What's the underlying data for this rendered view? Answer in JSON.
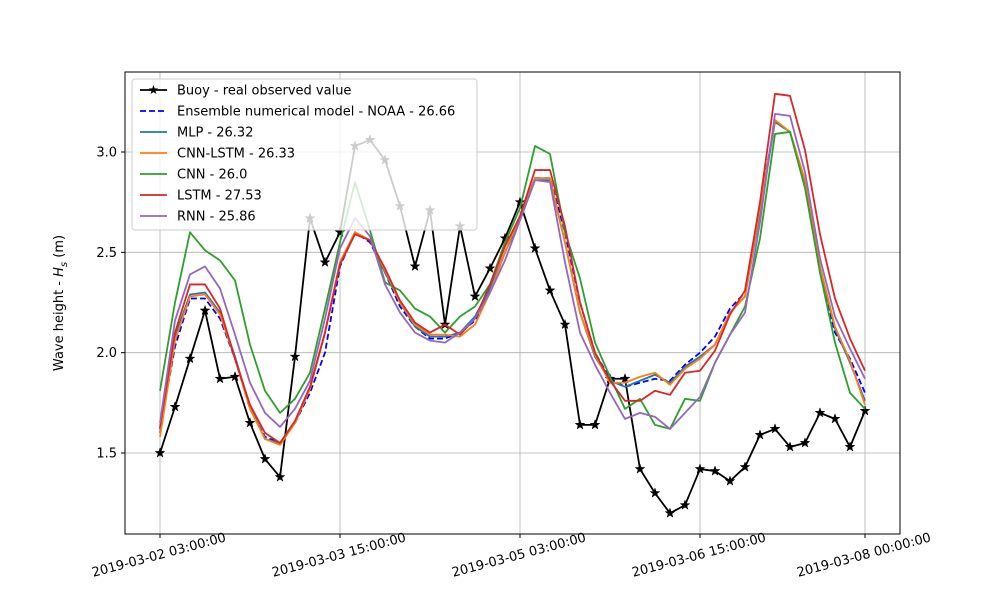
{
  "chart_data": {
    "type": "line",
    "title": "",
    "xlabel": "",
    "ylabel": "Wave height - ",
    "ylabel_symbol": "H",
    "ylabel_subscript": "s",
    "ylabel_unit": " (m)",
    "x_start": "2019-03-02 03:00:00",
    "x_end": "2019-03-08 00:00:00",
    "x": [
      "2019-03-02 03:00:00",
      "2019-03-02 06:00:00",
      "2019-03-02 09:00:00",
      "2019-03-02 12:00:00",
      "2019-03-02 15:00:00",
      "2019-03-02 18:00:00",
      "2019-03-02 21:00:00",
      "2019-03-03 00:00:00",
      "2019-03-03 03:00:00",
      "2019-03-03 06:00:00",
      "2019-03-03 09:00:00",
      "2019-03-03 12:00:00",
      "2019-03-03 15:00:00",
      "2019-03-03 18:00:00",
      "2019-03-03 21:00:00",
      "2019-03-04 00:00:00",
      "2019-03-04 03:00:00",
      "2019-03-04 06:00:00",
      "2019-03-04 09:00:00",
      "2019-03-04 12:00:00",
      "2019-03-04 15:00:00",
      "2019-03-04 18:00:00",
      "2019-03-04 21:00:00",
      "2019-03-05 00:00:00",
      "2019-03-05 03:00:00",
      "2019-03-05 06:00:00",
      "2019-03-05 09:00:00",
      "2019-03-05 12:00:00",
      "2019-03-05 15:00:00",
      "2019-03-05 18:00:00",
      "2019-03-05 21:00:00",
      "2019-03-06 00:00:00",
      "2019-03-06 03:00:00",
      "2019-03-06 06:00:00",
      "2019-03-06 09:00:00",
      "2019-03-06 12:00:00",
      "2019-03-06 15:00:00",
      "2019-03-06 18:00:00",
      "2019-03-06 21:00:00",
      "2019-03-07 00:00:00",
      "2019-03-07 03:00:00",
      "2019-03-07 06:00:00",
      "2019-03-07 09:00:00",
      "2019-03-07 12:00:00",
      "2019-03-07 15:00:00",
      "2019-03-07 18:00:00",
      "2019-03-07 21:00:00",
      "2019-03-08 00:00:00"
    ],
    "x_ticks": [
      "2019-03-02 03:00:00",
      "2019-03-03 15:00:00",
      "2019-03-05 03:00:00",
      "2019-03-06 15:00:00",
      "2019-03-08 00:00:00"
    ],
    "y_ticks": [
      1.5,
      2.0,
      2.5,
      3.0
    ],
    "y_tick_labels": [
      "1.5",
      "2.0",
      "2.5",
      "3.0"
    ],
    "ylim": [
      1.1,
      3.4
    ],
    "grid": true,
    "legend_position": "upper-left",
    "series": [
      {
        "name": "Buoy - real observed value",
        "color": "#000000",
        "style": "solid",
        "marker": "star",
        "values": [
          1.5,
          1.73,
          1.97,
          2.21,
          1.87,
          1.88,
          1.65,
          1.47,
          1.38,
          1.98,
          2.67,
          2.45,
          2.6,
          3.03,
          3.06,
          2.96,
          2.73,
          2.43,
          2.71,
          2.14,
          2.63,
          2.28,
          2.42,
          2.57,
          2.75,
          2.52,
          2.31,
          2.14,
          1.64,
          1.64,
          1.87,
          1.87,
          1.42,
          1.3,
          1.2,
          1.24,
          1.42,
          1.41,
          1.36,
          1.43,
          1.59,
          1.62,
          1.53,
          1.55,
          1.7,
          1.67,
          1.53,
          1.71
        ]
      },
      {
        "name": "Ensemble numerical model - NOAA - 26.66",
        "color": "#0000ff",
        "style": "dashed",
        "values": [
          1.62,
          2.03,
          2.27,
          2.27,
          2.17,
          1.97,
          1.72,
          1.58,
          1.55,
          1.65,
          1.8,
          2.0,
          2.43,
          2.6,
          2.55,
          2.4,
          2.23,
          2.13,
          2.07,
          2.07,
          2.1,
          2.16,
          2.3,
          2.5,
          2.68,
          2.87,
          2.87,
          2.6,
          2.25,
          2.0,
          1.87,
          1.83,
          1.85,
          1.87,
          1.86,
          1.94,
          2.0,
          2.08,
          2.22,
          2.3,
          2.74,
          3.15,
          3.1,
          2.85,
          2.4,
          2.1,
          1.97,
          1.8
        ]
      },
      {
        "name": "MLP - 26.32",
        "color": "#1f77b4",
        "style": "solid",
        "values": [
          1.6,
          2.08,
          2.29,
          2.3,
          2.2,
          1.98,
          1.73,
          1.57,
          1.55,
          1.65,
          1.82,
          2.1,
          2.45,
          2.6,
          2.56,
          2.4,
          2.25,
          2.13,
          2.08,
          2.08,
          2.1,
          2.18,
          2.32,
          2.5,
          2.66,
          2.86,
          2.86,
          2.55,
          2.2,
          1.98,
          1.86,
          1.83,
          1.86,
          1.89,
          1.85,
          1.93,
          1.98,
          2.04,
          2.2,
          2.28,
          2.7,
          3.15,
          3.1,
          2.85,
          2.42,
          2.12,
          1.95,
          1.76
        ]
      },
      {
        "name": "CNN-LSTM - 26.33",
        "color": "#ff7f0e",
        "style": "solid",
        "values": [
          1.58,
          2.06,
          2.28,
          2.29,
          2.19,
          1.97,
          1.72,
          1.57,
          1.54,
          1.65,
          1.82,
          2.1,
          2.45,
          2.6,
          2.56,
          2.41,
          2.25,
          2.14,
          2.09,
          2.09,
          2.08,
          2.14,
          2.3,
          2.5,
          2.68,
          2.87,
          2.87,
          2.55,
          2.2,
          1.99,
          1.85,
          1.85,
          1.88,
          1.9,
          1.84,
          1.92,
          1.97,
          2.04,
          2.2,
          2.28,
          2.72,
          3.16,
          3.1,
          2.86,
          2.43,
          2.13,
          1.96,
          1.74
        ]
      },
      {
        "name": "CNN - 26.0",
        "color": "#2ca02c",
        "style": "solid",
        "values": [
          1.81,
          2.25,
          2.6,
          2.51,
          2.46,
          2.36,
          2.04,
          1.81,
          1.7,
          1.77,
          1.9,
          2.22,
          2.55,
          2.85,
          2.61,
          2.35,
          2.31,
          2.22,
          2.18,
          2.1,
          2.18,
          2.23,
          2.34,
          2.55,
          2.72,
          3.03,
          2.99,
          2.6,
          2.37,
          2.05,
          1.88,
          1.72,
          1.77,
          1.64,
          1.62,
          1.77,
          1.76,
          1.95,
          2.09,
          2.23,
          2.57,
          3.09,
          3.1,
          2.82,
          2.4,
          2.05,
          1.8,
          1.72
        ]
      },
      {
        "name": "LSTM - 27.53",
        "color": "#d62728",
        "style": "solid",
        "values": [
          1.63,
          2.1,
          2.34,
          2.34,
          2.22,
          1.97,
          1.74,
          1.6,
          1.55,
          1.66,
          1.83,
          2.1,
          2.44,
          2.59,
          2.56,
          2.42,
          2.26,
          2.15,
          2.1,
          2.14,
          2.09,
          2.17,
          2.34,
          2.53,
          2.68,
          2.91,
          2.91,
          2.63,
          2.25,
          2.0,
          1.86,
          1.76,
          1.76,
          1.81,
          1.79,
          1.9,
          1.91,
          2.01,
          2.19,
          2.31,
          2.75,
          3.29,
          3.28,
          3.01,
          2.59,
          2.27,
          2.07,
          1.91
        ]
      },
      {
        "name": "RNN - 25.86",
        "color": "#9467bd",
        "style": "solid",
        "values": [
          1.65,
          2.16,
          2.39,
          2.43,
          2.32,
          2.09,
          1.85,
          1.7,
          1.63,
          1.72,
          1.86,
          2.17,
          2.52,
          2.67,
          2.58,
          2.34,
          2.2,
          2.1,
          2.06,
          2.05,
          2.1,
          2.17,
          2.3,
          2.46,
          2.66,
          2.86,
          2.85,
          2.45,
          2.1,
          1.94,
          1.8,
          1.67,
          1.7,
          1.68,
          1.62,
          1.7,
          1.78,
          1.95,
          2.09,
          2.2,
          2.65,
          3.19,
          3.18,
          2.9,
          2.47,
          2.18,
          2.02,
          1.87
        ]
      }
    ]
  }
}
